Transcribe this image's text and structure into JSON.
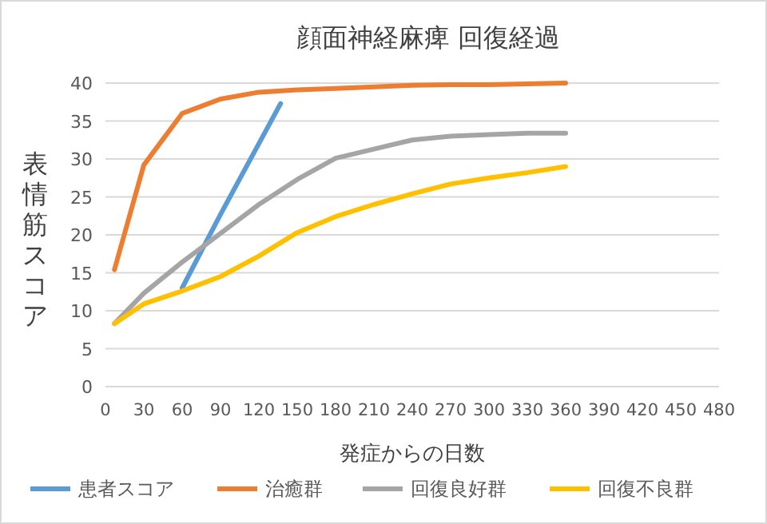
{
  "chart_data": {
    "type": "line",
    "title": "顔面神経麻痺 回復経過",
    "xlabel": "発症からの日数",
    "ylabel": "表情筋スコア",
    "xlim": [
      0,
      480
    ],
    "xticks": [
      0,
      30,
      60,
      90,
      120,
      150,
      180,
      210,
      240,
      270,
      300,
      330,
      360,
      390,
      420,
      450,
      480
    ],
    "ylim": [
      0,
      40
    ],
    "yticks": [
      0,
      5,
      10,
      15,
      20,
      25,
      30,
      35,
      40
    ],
    "grid": "y",
    "legend": "bottom",
    "series": [
      {
        "name": "患者スコア",
        "color": "#5b9bd5",
        "x": [
          60,
          90,
          137
        ],
        "values": [
          13,
          22.7,
          37.3
        ]
      },
      {
        "name": "治癒群",
        "color": "#ed7d31",
        "x": [
          7,
          30,
          60,
          90,
          120,
          150,
          180,
          210,
          240,
          270,
          300,
          330,
          360
        ],
        "values": [
          15.4,
          29.2,
          36,
          37.9,
          38.8,
          39.1,
          39.3,
          39.5,
          39.7,
          39.8,
          39.8,
          39.9,
          40
        ]
      },
      {
        "name": "回復良好群",
        "color": "#a5a5a5",
        "x": [
          7,
          30,
          60,
          90,
          120,
          150,
          180,
          210,
          240,
          270,
          300,
          330,
          360
        ],
        "values": [
          8.3,
          12.3,
          16.4,
          20.2,
          24,
          27.3,
          30.1,
          31.3,
          32.5,
          33,
          33.2,
          33.4,
          33.4
        ]
      },
      {
        "name": "回復不良群",
        "color": "#ffc000",
        "x": [
          7,
          30,
          60,
          90,
          120,
          150,
          180,
          210,
          240,
          270,
          300,
          330,
          360
        ],
        "values": [
          8.3,
          10.9,
          12.6,
          14.5,
          17.2,
          20.3,
          22.4,
          24,
          25.4,
          26.7,
          27.5,
          28.2,
          29
        ]
      }
    ]
  }
}
